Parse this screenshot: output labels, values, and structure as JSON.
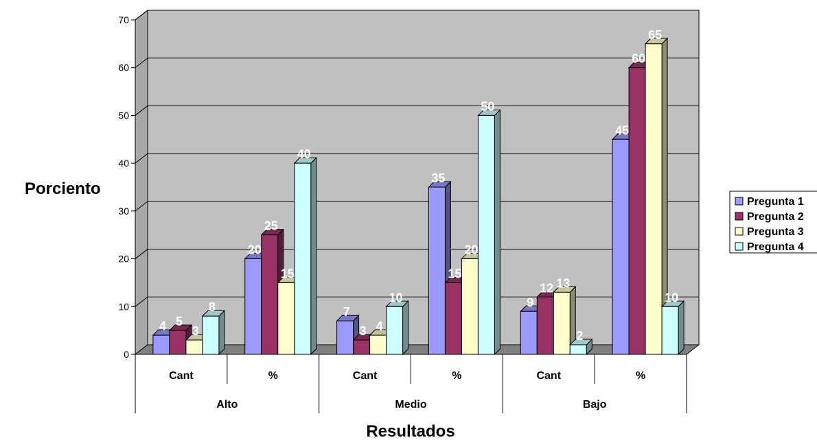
{
  "chart_data": {
    "type": "bar",
    "title": "",
    "xlabel": "Resultados",
    "ylabel": "Porciento",
    "ylim": [
      0,
      70
    ],
    "yticks": [
      "0",
      "10",
      "20",
      "30",
      "40",
      "50",
      "60",
      "70"
    ],
    "grid": true,
    "legend_position": "right",
    "groups": [
      "Alto",
      "Medio",
      "Bajo"
    ],
    "categories": [
      "Cant",
      "%",
      "Cant",
      "%",
      "Cant",
      "%"
    ],
    "series": [
      {
        "name": "Pregunta 1",
        "color": "#9999ff",
        "values": [
          4,
          20,
          7,
          35,
          9,
          45
        ]
      },
      {
        "name": "Pregunta 2",
        "color": "#993366",
        "values": [
          5,
          25,
          3,
          15,
          12,
          60
        ]
      },
      {
        "name": "Pregunta 3",
        "color": "#ffffcc",
        "values": [
          3,
          15,
          4,
          20,
          13,
          65
        ]
      },
      {
        "name": "Pregunta 4",
        "color": "#ccffff",
        "values": [
          8,
          40,
          10,
          50,
          2,
          10
        ]
      }
    ]
  }
}
